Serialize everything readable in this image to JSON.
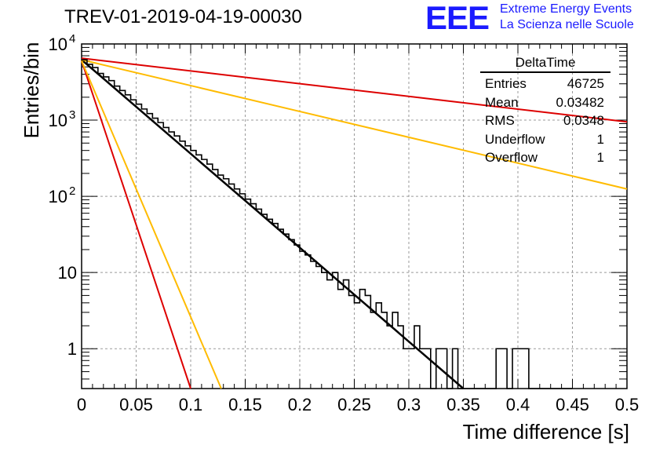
{
  "header": {
    "title": "TREV-01-2019-04-19-00030",
    "logo_text": "EEE",
    "logo_line1": "Extreme Energy Events",
    "logo_line2": "La Scienza nelle Scuole"
  },
  "stats_box": {
    "title": "DeltaTime",
    "rows": [
      {
        "label": "Entries",
        "value": "46725"
      },
      {
        "label": "Mean",
        "value": "0.03482"
      },
      {
        "label": "RMS",
        "value": "0.0348"
      },
      {
        "label": "Underflow",
        "value": "1"
      },
      {
        "label": "Overflow",
        "value": "1"
      }
    ]
  },
  "chart_data": {
    "type": "bar",
    "title": "TREV-01-2019-04-19-00030",
    "xlabel": "Time difference [s]",
    "ylabel": "Entries/bin",
    "xlim": [
      0,
      0.5
    ],
    "ylim": [
      0.3,
      10000
    ],
    "yscale": "log",
    "grid": true,
    "legend": "top-right",
    "x_ticks": [
      "0",
      "0.05",
      "0.1",
      "0.15",
      "0.2",
      "0.25",
      "0.3",
      "0.35",
      "0.4",
      "0.45",
      "0.5"
    ],
    "y_ticks": [
      {
        "value": 1,
        "label": "1"
      },
      {
        "value": 10,
        "label": "10"
      },
      {
        "value": 100,
        "label": "10",
        "exp": "2"
      },
      {
        "value": 1000,
        "label": "10",
        "exp": "3"
      },
      {
        "value": 10000,
        "label": "10",
        "exp": "4"
      }
    ],
    "histogram": {
      "bin_width": 0.005,
      "bin_start": 0,
      "values": [
        6200,
        5400,
        4900,
        4100,
        3700,
        3300,
        2800,
        2450,
        2150,
        1850,
        1620,
        1400,
        1220,
        1060,
        930,
        800,
        700,
        620,
        530,
        460,
        400,
        350,
        305,
        265,
        225,
        190,
        170,
        145,
        125,
        108,
        92,
        80,
        68,
        58,
        50,
        44,
        37,
        32,
        27,
        23,
        19,
        17,
        14,
        12,
        10,
        8,
        10,
        6,
        8,
        5,
        4,
        6,
        5,
        3,
        4,
        3,
        2,
        3,
        2,
        1,
        1,
        2,
        1,
        1,
        0,
        1,
        1,
        0,
        1,
        0,
        0,
        0,
        0,
        0,
        0,
        0,
        1,
        1,
        0,
        1,
        1,
        1,
        0,
        0,
        0,
        0,
        0,
        0,
        0,
        0
      ],
      "color": "#000000"
    },
    "series": [
      {
        "color": "#000000",
        "x": [
          0,
          0.35
        ],
        "y": [
          6200,
          0.3
        ]
      },
      {
        "color": "#dd0000",
        "x": [
          0,
          0.1
        ],
        "y": [
          6000,
          0.3
        ]
      },
      {
        "color": "#ffbb00",
        "x": [
          0,
          0.128
        ],
        "y": [
          6000,
          0.3
        ]
      },
      {
        "color": "#dd0000",
        "x": [
          0,
          0.5
        ],
        "y": [
          6500,
          950
        ]
      },
      {
        "color": "#ffbb00",
        "x": [
          0,
          0.5
        ],
        "y": [
          6200,
          125
        ]
      }
    ]
  }
}
